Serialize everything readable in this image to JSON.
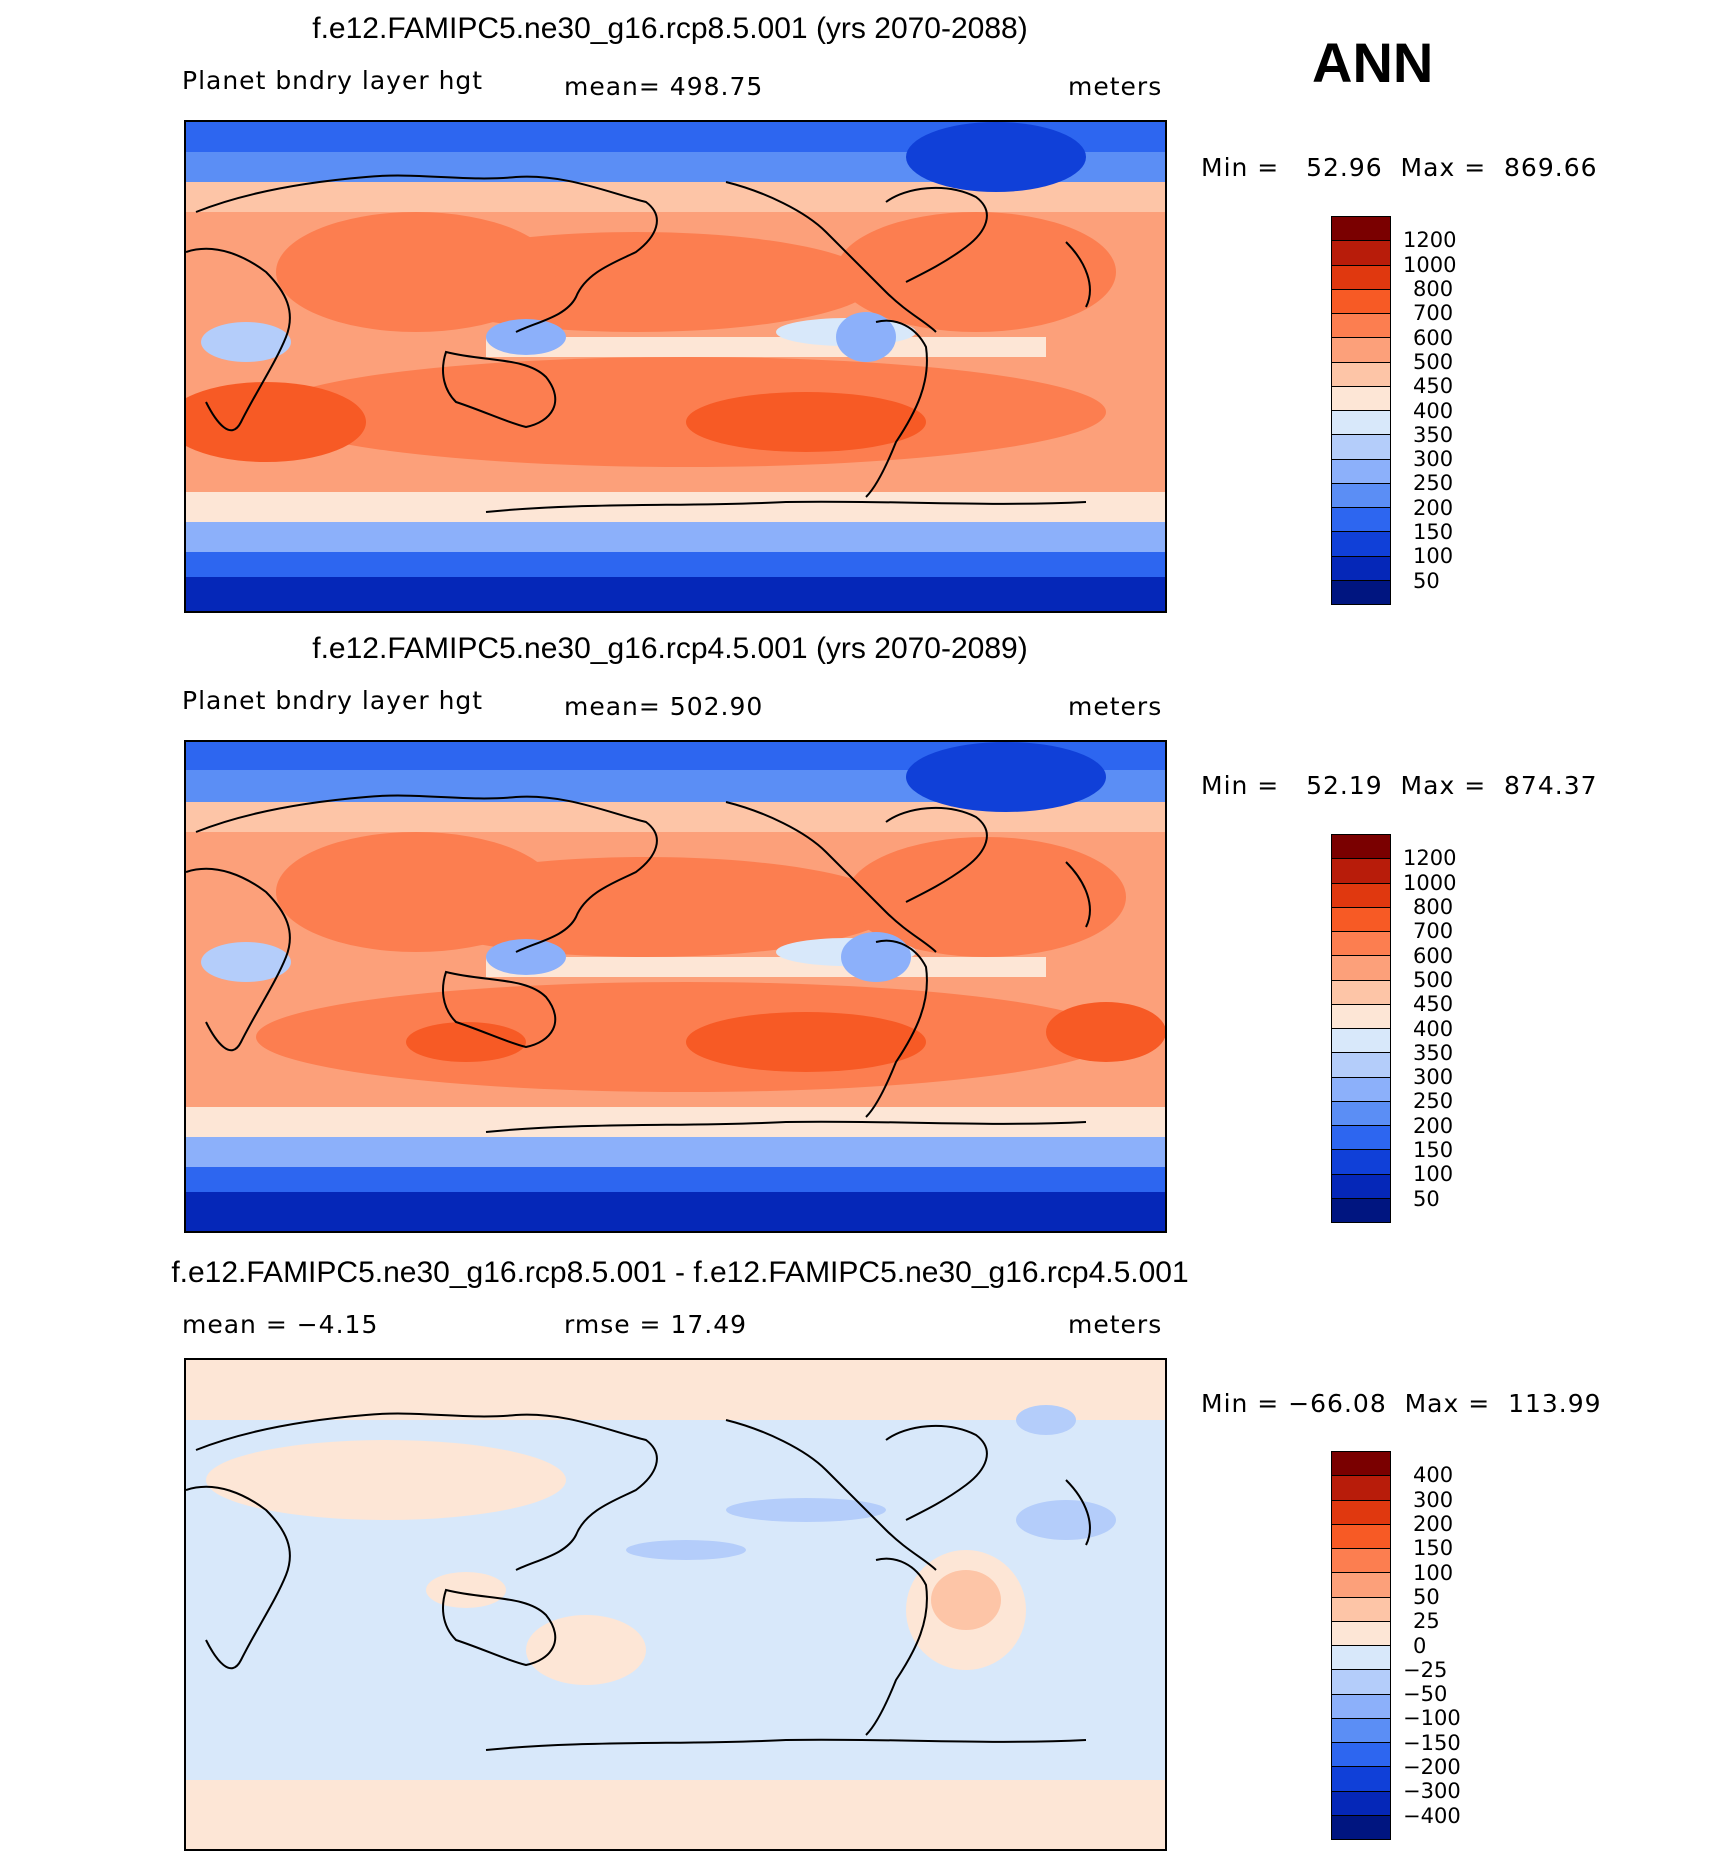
{
  "season": "ANN",
  "panels": [
    {
      "title": "f.e12.FAMIPC5.ne30_g16.rcp8.5.001 (yrs 2070-2088)",
      "left_label": "Planet bndry layer hgt",
      "center_label": "mean= 498.75",
      "units": "meters",
      "minmax": "Min =   52.96  Max =  869.66",
      "kind": "abs"
    },
    {
      "title": "f.e12.FAMIPC5.ne30_g16.rcp4.5.001 (yrs 2070-2089)",
      "left_label": "Planet bndry layer hgt",
      "center_label": "mean= 502.90",
      "units": "meters",
      "minmax": "Min =   52.19  Max =  874.37",
      "kind": "abs"
    },
    {
      "title": "f.e12.FAMIPC5.ne30_g16.rcp8.5.001 - f.e12.FAMIPC5.ne30_g16.rcp4.5.001",
      "left_label": "mean =   −4.15",
      "center_label": "rmse =   17.49",
      "units": "meters",
      "minmax": "Min = −66.08  Max =  113.99",
      "kind": "diff"
    }
  ],
  "colorbars": {
    "abs": {
      "levels": [
        "1200",
        "1000",
        "800",
        "700",
        "600",
        "500",
        "450",
        "400",
        "350",
        "300",
        "250",
        "200",
        "150",
        "100",
        "50"
      ],
      "colors": [
        "#7a0000",
        "#b81c0a",
        "#e0380f",
        "#f75a25",
        "#fc7e50",
        "#fca07a",
        "#fdc5a7",
        "#fde6d6",
        "#d8e8fa",
        "#b4cdfa",
        "#8cb0fa",
        "#5b8ef5",
        "#2d66f0",
        "#1040d8",
        "#0527b8",
        "#001580"
      ]
    },
    "diff": {
      "levels": [
        "400",
        "300",
        "200",
        "150",
        "100",
        "50",
        "25",
        "0",
        "−25",
        "−50",
        "−100",
        "−150",
        "−200",
        "−300",
        "−400"
      ],
      "colors": [
        "#7a0000",
        "#b81c0a",
        "#e0380f",
        "#f75a25",
        "#fc7e50",
        "#fca07a",
        "#fdc5a7",
        "#fde6d6",
        "#d8e8fa",
        "#b4cdfa",
        "#8cb0fa",
        "#5b8ef5",
        "#2d66f0",
        "#1040d8",
        "#0527b8",
        "#001580"
      ]
    }
  }
}
